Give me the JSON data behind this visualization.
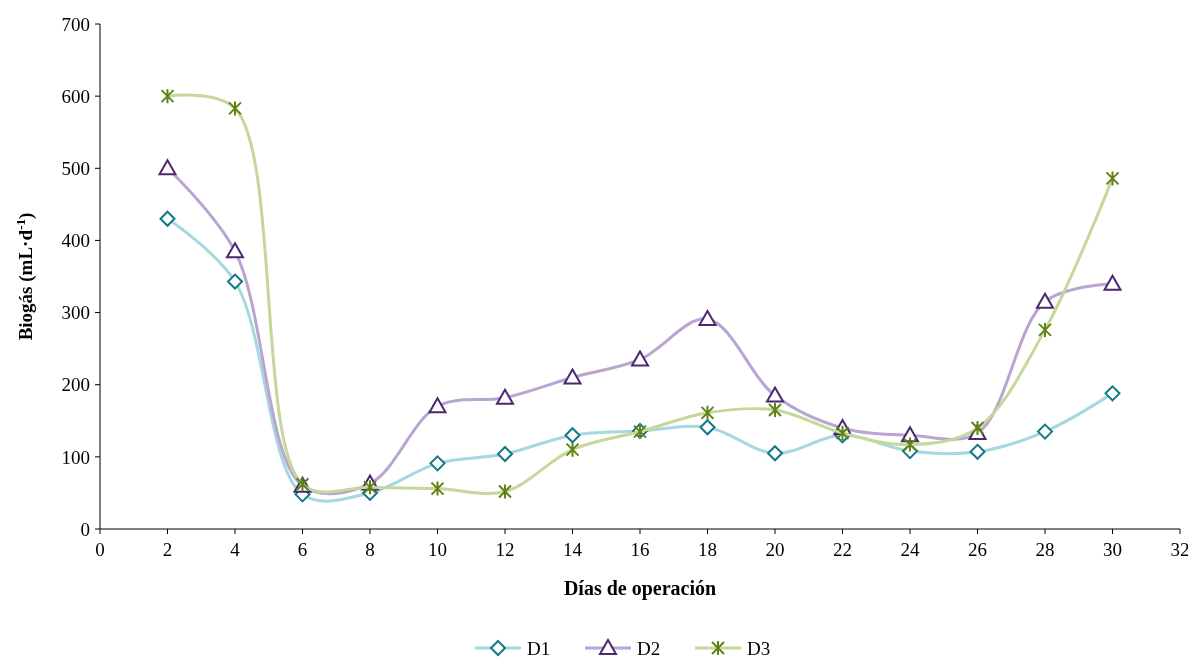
{
  "chart_data": {
    "type": "line",
    "xlabel": "Días de operación",
    "ylabel": "Biogás (mL·d$^{-1}$)",
    "x": [
      2,
      4,
      6,
      8,
      10,
      12,
      14,
      16,
      18,
      20,
      22,
      24,
      26,
      28,
      30
    ],
    "xlim": [
      0,
      32
    ],
    "xticks": [
      0,
      2,
      4,
      6,
      8,
      10,
      12,
      14,
      16,
      18,
      20,
      22,
      24,
      26,
      28,
      30,
      32
    ],
    "ylim": [
      0,
      700
    ],
    "yticks": [
      0,
      100,
      200,
      300,
      400,
      500,
      600,
      700
    ],
    "grid": false,
    "legend": "bottom",
    "series": [
      {
        "name": "D1",
        "color": "#a5d8e0",
        "marker": "diamond",
        "values": [
          430,
          343,
          48,
          50,
          91,
          104,
          130,
          136,
          141,
          105,
          130,
          108,
          107,
          135,
          188
        ]
      },
      {
        "name": "D2",
        "color": "#b9a5cf",
        "marker": "triangle",
        "values": [
          500,
          385,
          60,
          63,
          170,
          182,
          210,
          235,
          291,
          185,
          140,
          130,
          133,
          315,
          340
        ]
      },
      {
        "name": "D3",
        "color": "#c4d89a",
        "marker": "cross",
        "values": [
          600,
          583,
          62,
          58,
          56,
          52,
          110,
          135,
          161,
          165,
          133,
          117,
          140,
          276,
          486
        ]
      }
    ]
  }
}
